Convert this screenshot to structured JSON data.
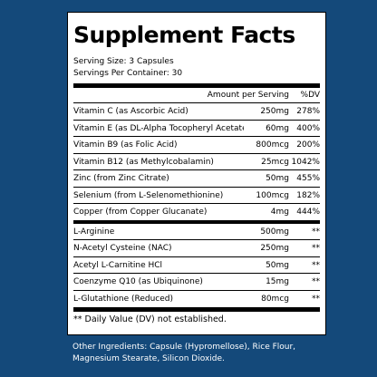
{
  "panel": {
    "title": "Supplement Facts",
    "serving_size": "Serving Size: 3 Capsules",
    "servings_per_container": "Servings Per Container: 30",
    "header": {
      "amount": "Amount per Serving",
      "dv": "%DV"
    },
    "rows": [
      {
        "name": "Vitamin C (as Ascorbic Acid)",
        "amount": "250mg",
        "dv": "278%"
      },
      {
        "name": "Vitamin E (as DL-Alpha Tocopheryl Acetate)",
        "amount": "60mg",
        "dv": "400%"
      },
      {
        "name": "Vitamin B9 (as Folic Acid)",
        "amount": "800mcg",
        "dv": "200%"
      },
      {
        "name": "Vitamin B12 (as Methylcobalamin)",
        "amount": "25mcg",
        "dv": "1042%"
      },
      {
        "name": "Zinc (from Zinc Citrate)",
        "amount": "50mg",
        "dv": "455%"
      },
      {
        "name": "Selenium (from L-Selenomethionine)",
        "amount": "100mcg",
        "dv": "182%"
      },
      {
        "name": "Copper (from Copper Glucanate)",
        "amount": "4mg",
        "dv": "444%"
      },
      {
        "name": "L-Arginine",
        "amount": "500mg",
        "dv": "**"
      },
      {
        "name": "N-Acetyl Cysteine (NAC)",
        "amount": "250mg",
        "dv": "**"
      },
      {
        "name": "Acetyl L-Carnitine HCl",
        "amount": "50mg",
        "dv": "**"
      },
      {
        "name": "Coenzyme Q10 (as Ubiquinone)",
        "amount": "15mg",
        "dv": "**"
      },
      {
        "name": "L-Glutathione (Reduced)",
        "amount": "80mcg",
        "dv": "**"
      }
    ],
    "footnote": "** Daily Value (DV) not established."
  },
  "other_ingredients": {
    "line1": "Other Ingredients: Capsule (Hypromellose), Rice Flour,",
    "line2": "Magnesium Stearate, Silicon Dioxide."
  },
  "colors": {
    "background": "#14497a",
    "panel": "#ffffff",
    "text": "#000000"
  }
}
